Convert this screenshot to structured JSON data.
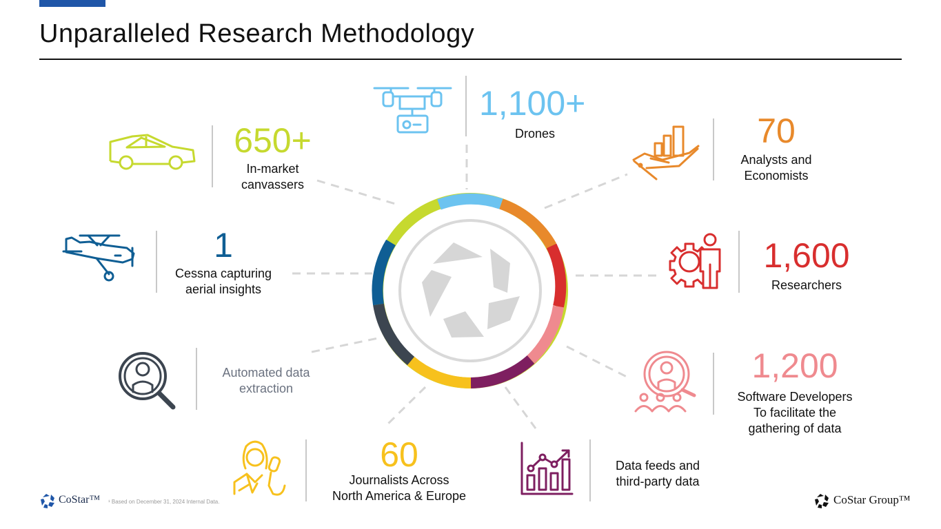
{
  "title": "Unparalleled Research Methodology",
  "colors": {
    "lime": "#c6d92f",
    "sky": "#6cc3f0",
    "orange": "#e8892b",
    "red": "#d82e2e",
    "pink": "#ef8a8f",
    "purple": "#7e1f60",
    "yellow": "#f7c11d",
    "slate": "#3c4550",
    "blue": "#0f5e94",
    "gray": "#d9d9d9"
  },
  "stats": {
    "drones": {
      "value": "1,100+",
      "label": "Drones"
    },
    "canvassers": {
      "value": "650+",
      "label_lines": [
        "In-market",
        "canvassers"
      ]
    },
    "analysts": {
      "value": "70",
      "label_lines": [
        "Analysts and",
        "Economists"
      ]
    },
    "cessna": {
      "value": "1",
      "label_lines": [
        "Cessna capturing",
        "aerial insights"
      ]
    },
    "researchers": {
      "value": "1,600",
      "label": "Researchers"
    },
    "automated": {
      "label_lines": [
        "Automated data",
        "extraction"
      ]
    },
    "developers": {
      "value": "1,200",
      "label_lines": [
        "Software Developers",
        "To facilitate the",
        "gathering of data"
      ]
    },
    "journalists": {
      "value": "60",
      "label_lines": [
        "Journalists Across",
        "North America & Europe"
      ]
    },
    "datafeeds": {
      "label_lines": [
        "Data feeds and",
        "third-party data"
      ]
    }
  },
  "footnote": "¹ Based on December 31, 2024 Internal Data.",
  "logos": {
    "left": "CoStar™",
    "right": "CoStar Group™"
  }
}
